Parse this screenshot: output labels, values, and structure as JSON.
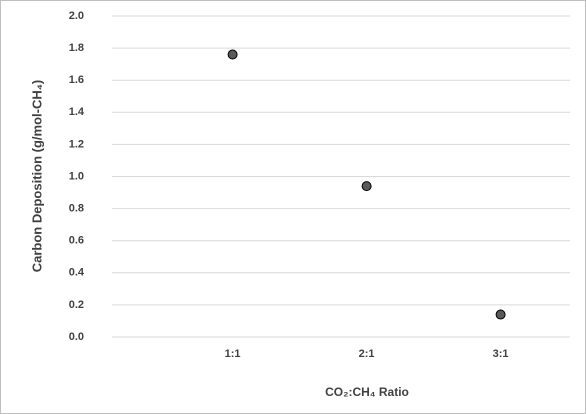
{
  "chart_data": {
    "type": "scatter",
    "x_label": "CO₂:CH₄ Ratio",
    "y_label": "Carbon Deposition (g/mol-CH₄)",
    "categories": [
      "1:1",
      "2:1",
      "3:1"
    ],
    "values": [
      1.76,
      0.94,
      0.14
    ],
    "color": "#595959",
    "ylim": [
      0,
      2
    ],
    "yticks": [
      {
        "value": 0,
        "label": "0.0"
      },
      0.2,
      0.4,
      0.6,
      0.8,
      {
        "value": 1,
        "label": "1.0"
      },
      1.2,
      1.4,
      1.6,
      1.8,
      {
        "value": 2,
        "label": "2.0"
      }
    ],
    "grid": true
  }
}
